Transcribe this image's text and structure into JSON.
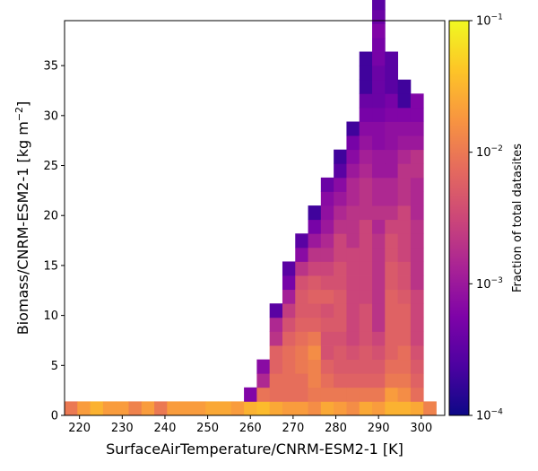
{
  "chart_data": {
    "type": "heatmap",
    "xlabel": "SurfaceAirTemperature/CNRM-ESM2-1 [K]",
    "ylabel": "Biomass/CNRM-ESM2-1 [kg m",
    "ylabel_sup": "−2",
    "ylabel_end": "]",
    "xlim": [
      216.5,
      305.5
    ],
    "ylim": [
      0,
      39.5
    ],
    "xticks": [
      220,
      230,
      240,
      250,
      260,
      270,
      280,
      290,
      300
    ],
    "xtick_labels": [
      "220",
      "230",
      "240",
      "250",
      "260",
      "270",
      "280",
      "290",
      "300"
    ],
    "yticks": [
      0,
      5,
      10,
      15,
      20,
      25,
      30,
      35
    ],
    "ytick_labels": [
      "0",
      "5",
      "10",
      "15",
      "20",
      "25",
      "30",
      "35"
    ],
    "x_bin_width": 3,
    "y_bin_height": 1.4,
    "colorbar": {
      "label": "Fraction of total datasites",
      "scale": "log",
      "colormap": "plasma",
      "range": [
        0.0001,
        0.1
      ],
      "tick_values": [
        0.0001,
        0.001,
        0.01,
        0.1
      ],
      "tick_base": "10",
      "tick_exponents": [
        "−4",
        "−3",
        "−2",
        "−1"
      ]
    },
    "columns": [
      {
        "x": 218,
        "values": [
          0.01
        ]
      },
      {
        "x": 221,
        "values": [
          0.02
        ]
      },
      {
        "x": 224,
        "values": [
          0.03
        ]
      },
      {
        "x": 227,
        "values": [
          0.02
        ]
      },
      {
        "x": 230,
        "values": [
          0.02
        ]
      },
      {
        "x": 233,
        "values": [
          0.012
        ]
      },
      {
        "x": 236,
        "values": [
          0.02
        ]
      },
      {
        "x": 239,
        "values": [
          0.01
        ]
      },
      {
        "x": 242,
        "values": [
          0.02
        ]
      },
      {
        "x": 245,
        "values": [
          0.02
        ]
      },
      {
        "x": 248,
        "values": [
          0.02
        ]
      },
      {
        "x": 251,
        "values": [
          0.025
        ]
      },
      {
        "x": 254,
        "values": [
          0.025
        ]
      },
      {
        "x": 257,
        "values": [
          0.02
        ]
      },
      {
        "x": 260,
        "values": [
          0.03,
          0.0006
        ]
      },
      {
        "x": 263,
        "values": [
          0.035,
          0.009,
          0.0015,
          0.0007
        ]
      },
      {
        "x": 266,
        "values": [
          0.025,
          0.008,
          0.008,
          0.006,
          0.006,
          0.002,
          0.0015,
          0.0003
        ]
      },
      {
        "x": 269,
        "values": [
          0.02,
          0.008,
          0.008,
          0.008,
          0.008,
          0.006,
          0.004,
          0.0025,
          0.0012,
          0.0005,
          0.0003
        ]
      },
      {
        "x": 272,
        "values": [
          0.02,
          0.008,
          0.008,
          0.01,
          0.01,
          0.008,
          0.006,
          0.005,
          0.005,
          0.004,
          0.002,
          0.0007,
          0.0003
        ]
      },
      {
        "x": 275,
        "values": [
          0.015,
          0.01,
          0.012,
          0.012,
          0.015,
          0.01,
          0.006,
          0.005,
          0.006,
          0.005,
          0.003,
          0.002,
          0.001,
          0.0005,
          0.0002
        ]
      },
      {
        "x": 278,
        "values": [
          0.025,
          0.01,
          0.008,
          0.006,
          0.004,
          0.004,
          0.005,
          0.004,
          0.006,
          0.004,
          0.003,
          0.002,
          0.0015,
          0.001,
          0.0008,
          0.0007,
          0.0004
        ]
      },
      {
        "x": 281,
        "values": [
          0.02,
          0.01,
          0.006,
          0.005,
          0.005,
          0.004,
          0.005,
          0.005,
          0.005,
          0.004,
          0.004,
          0.003,
          0.003,
          0.002,
          0.0015,
          0.001,
          0.0007,
          0.0003,
          0.0002
        ]
      },
      {
        "x": 284,
        "values": [
          0.015,
          0.01,
          0.006,
          0.005,
          0.004,
          0.003,
          0.003,
          0.003,
          0.003,
          0.003,
          0.003,
          0.003,
          0.002,
          0.002,
          0.002,
          0.0015,
          0.0015,
          0.001,
          0.0007,
          0.0005,
          0.0002
        ]
      },
      {
        "x": 287,
        "values": [
          0.025,
          0.01,
          0.006,
          0.005,
          0.005,
          0.004,
          0.004,
          0.004,
          0.003,
          0.003,
          0.003,
          0.003,
          0.003,
          0.003,
          0.002,
          0.002,
          0.002,
          0.0015,
          0.0012,
          0.0009,
          0.0007,
          0.0005,
          0.0004,
          0.0002,
          0.0002,
          0.0002
        ]
      },
      {
        "x": 290,
        "values": [
          0.02,
          0.01,
          0.006,
          0.005,
          0.004,
          0.003,
          0.002,
          0.002,
          0.002,
          0.002,
          0.002,
          0.002,
          0.002,
          0.0015,
          0.002,
          0.0015,
          0.0015,
          0.001,
          0.001,
          0.0007,
          0.0007,
          0.0005,
          0.0004,
          0.0004,
          0.0004,
          0.0005,
          0.0005,
          0.0006,
          0.0004,
          0.0003
        ]
      },
      {
        "x": 293,
        "values": [
          0.03,
          0.02,
          0.01,
          0.008,
          0.006,
          0.006,
          0.006,
          0.006,
          0.006,
          0.005,
          0.005,
          0.004,
          0.004,
          0.003,
          0.002,
          0.0015,
          0.0015,
          0.001,
          0.001,
          0.0008,
          0.0008,
          0.0006,
          0.0005,
          0.0003,
          0.0003,
          0.0003
        ]
      },
      {
        "x": 296,
        "values": [
          0.03,
          0.015,
          0.01,
          0.008,
          0.008,
          0.006,
          0.006,
          0.006,
          0.005,
          0.004,
          0.004,
          0.003,
          0.003,
          0.003,
          0.003,
          0.002,
          0.002,
          0.002,
          0.0015,
          0.001,
          0.0008,
          0.0006,
          0.0002,
          0.0002
        ]
      },
      {
        "x": 299,
        "values": [
          0.025,
          0.008,
          0.006,
          0.005,
          0.004,
          0.003,
          0.003,
          0.003,
          0.003,
          0.002,
          0.002,
          0.002,
          0.002,
          0.002,
          0.0015,
          0.0015,
          0.0015,
          0.002,
          0.002,
          0.001,
          0.0008,
          0.0006,
          0.0006
        ]
      },
      {
        "x": 302,
        "values": [
          0.012
        ]
      }
    ]
  }
}
